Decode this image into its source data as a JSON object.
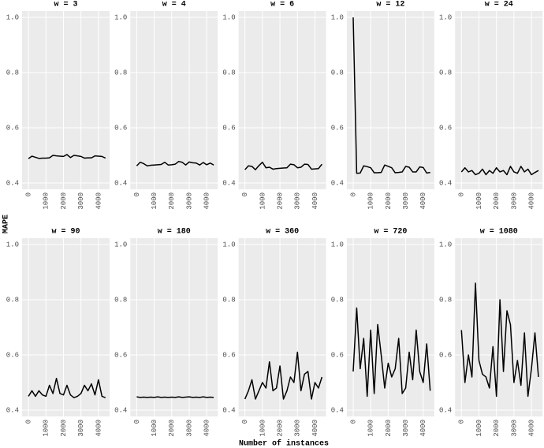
{
  "xlabel": "Number of instances",
  "ylabel": "MAPE",
  "chart_data": [
    {
      "type": "line",
      "title": "w = 3",
      "x": [
        0,
        200,
        400,
        600,
        800,
        1000,
        1200,
        1400,
        1600,
        1800,
        2000,
        2200,
        2400,
        2600,
        2800,
        3000,
        3200,
        3400,
        3600,
        3800,
        4000,
        4200,
        4400
      ],
      "values": [
        0.488,
        0.497,
        0.493,
        0.489,
        0.49,
        0.49,
        0.491,
        0.5,
        0.498,
        0.497,
        0.496,
        0.503,
        0.492,
        0.5,
        0.498,
        0.496,
        0.49,
        0.491,
        0.491,
        0.498,
        0.497,
        0.496,
        0.49
      ],
      "color": "#000000",
      "xlim": [
        -364,
        4636
      ],
      "ylim": [
        0.377,
        1.023
      ],
      "xticks": [
        0,
        1000,
        2000,
        3000,
        4000
      ],
      "yticks": [
        0.4,
        0.6,
        0.8,
        {
          "value": 1,
          "label": "1.0"
        }
      ],
      "grid": true
    },
    {
      "type": "line",
      "title": "w = 4",
      "x": [
        0,
        200,
        400,
        600,
        800,
        1000,
        1200,
        1400,
        1600,
        1800,
        2000,
        2200,
        2400,
        2600,
        2800,
        3000,
        3200,
        3400,
        3600,
        3800,
        4000,
        4200,
        4400
      ],
      "values": [
        0.462,
        0.475,
        0.47,
        0.462,
        0.464,
        0.465,
        0.466,
        0.467,
        0.475,
        0.465,
        0.466,
        0.468,
        0.478,
        0.475,
        0.465,
        0.476,
        0.473,
        0.472,
        0.465,
        0.474,
        0.466,
        0.472,
        0.465
      ],
      "color": "#000000",
      "xlim": [
        -364,
        4636
      ],
      "ylim": [
        0.377,
        1.023
      ],
      "xticks": [
        0,
        1000,
        2000,
        3000,
        4000
      ],
      "yticks": [
        0.4,
        0.6,
        0.8,
        {
          "value": 1,
          "label": "1.0"
        }
      ],
      "grid": true
    },
    {
      "type": "line",
      "title": "w = 6",
      "x": [
        0,
        200,
        400,
        600,
        800,
        1000,
        1200,
        1400,
        1600,
        1800,
        2000,
        2200,
        2400,
        2600,
        2800,
        3000,
        3200,
        3400,
        3600,
        3800,
        4000,
        4200,
        4400
      ],
      "values": [
        0.448,
        0.462,
        0.46,
        0.448,
        0.463,
        0.475,
        0.455,
        0.457,
        0.45,
        0.452,
        0.453,
        0.454,
        0.455,
        0.468,
        0.466,
        0.455,
        0.457,
        0.468,
        0.467,
        0.45,
        0.451,
        0.452,
        0.468
      ],
      "color": "#000000",
      "xlim": [
        -364,
        4636
      ],
      "ylim": [
        0.377,
        1.023
      ],
      "xticks": [
        0,
        1000,
        2000,
        3000,
        4000
      ],
      "yticks": [
        0.4,
        0.6,
        0.8,
        {
          "value": 1,
          "label": "1.0"
        }
      ],
      "grid": true
    },
    {
      "type": "line",
      "title": "w = 12",
      "x": [
        0,
        200,
        400,
        600,
        800,
        1000,
        1200,
        1400,
        1600,
        1800,
        2000,
        2200,
        2400,
        2600,
        2800,
        3000,
        3200,
        3400,
        3600,
        3800,
        4000,
        4200,
        4400
      ],
      "values": [
        1.0,
        0.435,
        0.436,
        0.462,
        0.459,
        0.455,
        0.437,
        0.437,
        0.438,
        0.465,
        0.46,
        0.455,
        0.437,
        0.438,
        0.44,
        0.46,
        0.457,
        0.44,
        0.44,
        0.458,
        0.456,
        0.436,
        0.438
      ],
      "color": "#000000",
      "xlim": [
        -364,
        4636
      ],
      "ylim": [
        0.377,
        1.023
      ],
      "xticks": [
        0,
        1000,
        2000,
        3000,
        4000
      ],
      "yticks": [
        0.4,
        0.6,
        0.8,
        {
          "value": 1,
          "label": "1.0"
        }
      ],
      "grid": true
    },
    {
      "type": "line",
      "title": "w = 24",
      "x": [
        0,
        200,
        400,
        600,
        800,
        1000,
        1200,
        1400,
        1600,
        1800,
        2000,
        2200,
        2400,
        2600,
        2800,
        3000,
        3200,
        3400,
        3600,
        3800,
        4000,
        4200,
        4400
      ],
      "values": [
        0.44,
        0.455,
        0.44,
        0.445,
        0.43,
        0.435,
        0.45,
        0.43,
        0.445,
        0.435,
        0.455,
        0.44,
        0.445,
        0.43,
        0.46,
        0.44,
        0.435,
        0.46,
        0.44,
        0.45,
        0.43,
        0.438,
        0.445
      ],
      "color": "#000000",
      "xlim": [
        -364,
        4636
      ],
      "ylim": [
        0.377,
        1.023
      ],
      "xticks": [
        0,
        1000,
        2000,
        3000,
        4000
      ],
      "yticks": [
        0.4,
        0.6,
        0.8,
        {
          "value": 1,
          "label": "1.0"
        }
      ],
      "grid": true
    },
    {
      "type": "line",
      "title": "w = 90",
      "x": [
        0,
        200,
        400,
        600,
        800,
        1000,
        1200,
        1400,
        1600,
        1800,
        2000,
        2200,
        2400,
        2600,
        2800,
        3000,
        3200,
        3400,
        3600,
        3800,
        4000,
        4200,
        4400
      ],
      "values": [
        0.45,
        0.47,
        0.45,
        0.47,
        0.455,
        0.45,
        0.49,
        0.46,
        0.515,
        0.46,
        0.455,
        0.49,
        0.455,
        0.445,
        0.45,
        0.46,
        0.49,
        0.47,
        0.495,
        0.455,
        0.51,
        0.45,
        0.445
      ],
      "color": "#000000",
      "xlim": [
        -364,
        4636
      ],
      "ylim": [
        0.377,
        1.023
      ],
      "xticks": [
        0,
        1000,
        2000,
        3000,
        4000
      ],
      "yticks": [
        0.4,
        0.6,
        0.8,
        {
          "value": 1,
          "label": "1.0"
        }
      ],
      "grid": true
    },
    {
      "type": "line",
      "title": "w = 180",
      "x": [
        0,
        200,
        400,
        600,
        800,
        1000,
        1200,
        1400,
        1600,
        1800,
        2000,
        2200,
        2400,
        2600,
        2800,
        3000,
        3200,
        3400,
        3600,
        3800,
        4000,
        4200,
        4400
      ],
      "values": [
        0.448,
        0.446,
        0.447,
        0.446,
        0.447,
        0.446,
        0.448,
        0.446,
        0.447,
        0.446,
        0.447,
        0.446,
        0.448,
        0.446,
        0.447,
        0.448,
        0.446,
        0.447,
        0.446,
        0.448,
        0.446,
        0.447,
        0.446
      ],
      "color": "#000000",
      "xlim": [
        -364,
        4636
      ],
      "ylim": [
        0.377,
        1.023
      ],
      "xticks": [
        0,
        1000,
        2000,
        3000,
        4000
      ],
      "yticks": [
        0.4,
        0.6,
        0.8,
        {
          "value": 1,
          "label": "1.0"
        }
      ],
      "grid": true
    },
    {
      "type": "line",
      "title": "w = 360",
      "x": [
        0,
        200,
        400,
        600,
        800,
        1000,
        1200,
        1400,
        1600,
        1800,
        2000,
        2200,
        2400,
        2600,
        2800,
        3000,
        3200,
        3400,
        3600,
        3800,
        4000,
        4200,
        4400
      ],
      "values": [
        0.44,
        0.47,
        0.51,
        0.44,
        0.47,
        0.5,
        0.48,
        0.575,
        0.47,
        0.48,
        0.56,
        0.44,
        0.47,
        0.52,
        0.5,
        0.61,
        0.47,
        0.53,
        0.54,
        0.44,
        0.5,
        0.48,
        0.52
      ],
      "color": "#000000",
      "xlim": [
        -364,
        4636
      ],
      "ylim": [
        0.377,
        1.023
      ],
      "xticks": [
        0,
        1000,
        2000,
        3000,
        4000
      ],
      "yticks": [
        0.4,
        0.6,
        0.8,
        {
          "value": 1,
          "label": "1.0"
        }
      ],
      "grid": true
    },
    {
      "type": "line",
      "title": "w = 720",
      "x": [
        0,
        200,
        400,
        600,
        800,
        1000,
        1200,
        1400,
        1600,
        1800,
        2000,
        2200,
        2400,
        2600,
        2800,
        3000,
        3200,
        3400,
        3600,
        3800,
        4000,
        4200,
        4400
      ],
      "values": [
        0.54,
        0.77,
        0.55,
        0.66,
        0.45,
        0.69,
        0.46,
        0.71,
        0.6,
        0.48,
        0.57,
        0.52,
        0.55,
        0.66,
        0.46,
        0.48,
        0.61,
        0.51,
        0.69,
        0.54,
        0.5,
        0.64,
        0.47
      ],
      "color": "#000000",
      "xlim": [
        -364,
        4636
      ],
      "ylim": [
        0.377,
        1.023
      ],
      "xticks": [
        0,
        1000,
        2000,
        3000,
        4000
      ],
      "yticks": [
        0.4,
        0.6,
        0.8,
        {
          "value": 1,
          "label": "1.0"
        }
      ],
      "grid": true
    },
    {
      "type": "line",
      "title": "w = 1080",
      "x": [
        0,
        200,
        400,
        600,
        800,
        1000,
        1200,
        1400,
        1600,
        1800,
        2000,
        2200,
        2400,
        2600,
        2800,
        3000,
        3200,
        3400,
        3600,
        3800,
        4000,
        4200,
        4400
      ],
      "values": [
        0.69,
        0.5,
        0.6,
        0.52,
        0.86,
        0.58,
        0.53,
        0.52,
        0.48,
        0.63,
        0.45,
        0.8,
        0.54,
        0.76,
        0.71,
        0.5,
        0.58,
        0.49,
        0.68,
        0.45,
        0.55,
        0.68,
        0.52
      ],
      "color": "#000000",
      "xlim": [
        -364,
        4636
      ],
      "ylim": [
        0.377,
        1.023
      ],
      "xticks": [
        0,
        1000,
        2000,
        3000,
        4000
      ],
      "yticks": [
        0.4,
        0.6,
        0.8,
        {
          "value": 1,
          "label": "1.0"
        }
      ],
      "grid": true
    }
  ]
}
